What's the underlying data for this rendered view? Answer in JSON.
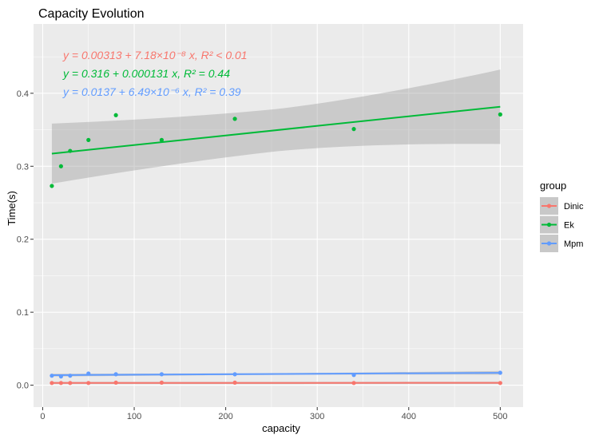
{
  "chart_data": {
    "type": "scatter",
    "title": "Capacity Evolution",
    "xlabel": "capacity",
    "ylabel": "Time(s)",
    "xlim": [
      -10,
      525
    ],
    "ylim": [
      -0.03,
      0.495
    ],
    "x_ticks": [
      0,
      100,
      200,
      300,
      400,
      500
    ],
    "x_tick_labels": [
      "0",
      "100",
      "200",
      "300",
      "400",
      "500"
    ],
    "y_ticks": [
      0.0,
      0.1,
      0.2,
      0.3,
      0.4
    ],
    "y_tick_labels": [
      "0.0",
      "0.1",
      "0.2",
      "0.3",
      "0.4"
    ],
    "grid": true,
    "legend_title": "group",
    "legend_position": "right",
    "series": [
      {
        "name": "Dinic",
        "color": "#F8766D",
        "x": [
          10,
          20,
          30,
          50,
          80,
          130,
          210,
          340,
          500
        ],
        "y": [
          0.003,
          0.003,
          0.003,
          0.003,
          0.0035,
          0.0035,
          0.0035,
          0.003,
          0.003
        ],
        "fit": {
          "intercept": 0.00313,
          "slope": 7.18e-08
        },
        "band": [
          0.0015,
          0.0015
        ],
        "equation": "y = 0.00313 + 7.18×10⁻⁸ x, R² < 0.01"
      },
      {
        "name": "Ek",
        "color": "#00BA38",
        "x": [
          10,
          20,
          30,
          50,
          80,
          130,
          210,
          340,
          500
        ],
        "y": [
          0.273,
          0.3,
          0.321,
          0.336,
          0.37,
          0.336,
          0.365,
          0.351,
          0.371
        ],
        "fit": {
          "intercept": 0.316,
          "slope": 0.000131
        },
        "band": [
          0.029,
          0.051
        ],
        "equation": "y = 0.316 + 0.000131 x, R² = 0.44"
      },
      {
        "name": "Mpm",
        "color": "#619CFF",
        "x": [
          10,
          20,
          30,
          50,
          80,
          130,
          210,
          340,
          500
        ],
        "y": [
          0.013,
          0.012,
          0.013,
          0.016,
          0.015,
          0.015,
          0.015,
          0.014,
          0.017
        ],
        "fit": {
          "intercept": 0.0137,
          "slope": 6.49e-06
        },
        "band": [
          0.0012,
          0.0025
        ],
        "equation": "y = 0.0137 + 6.49×10⁻⁶ x, R² = 0.39"
      }
    ]
  }
}
